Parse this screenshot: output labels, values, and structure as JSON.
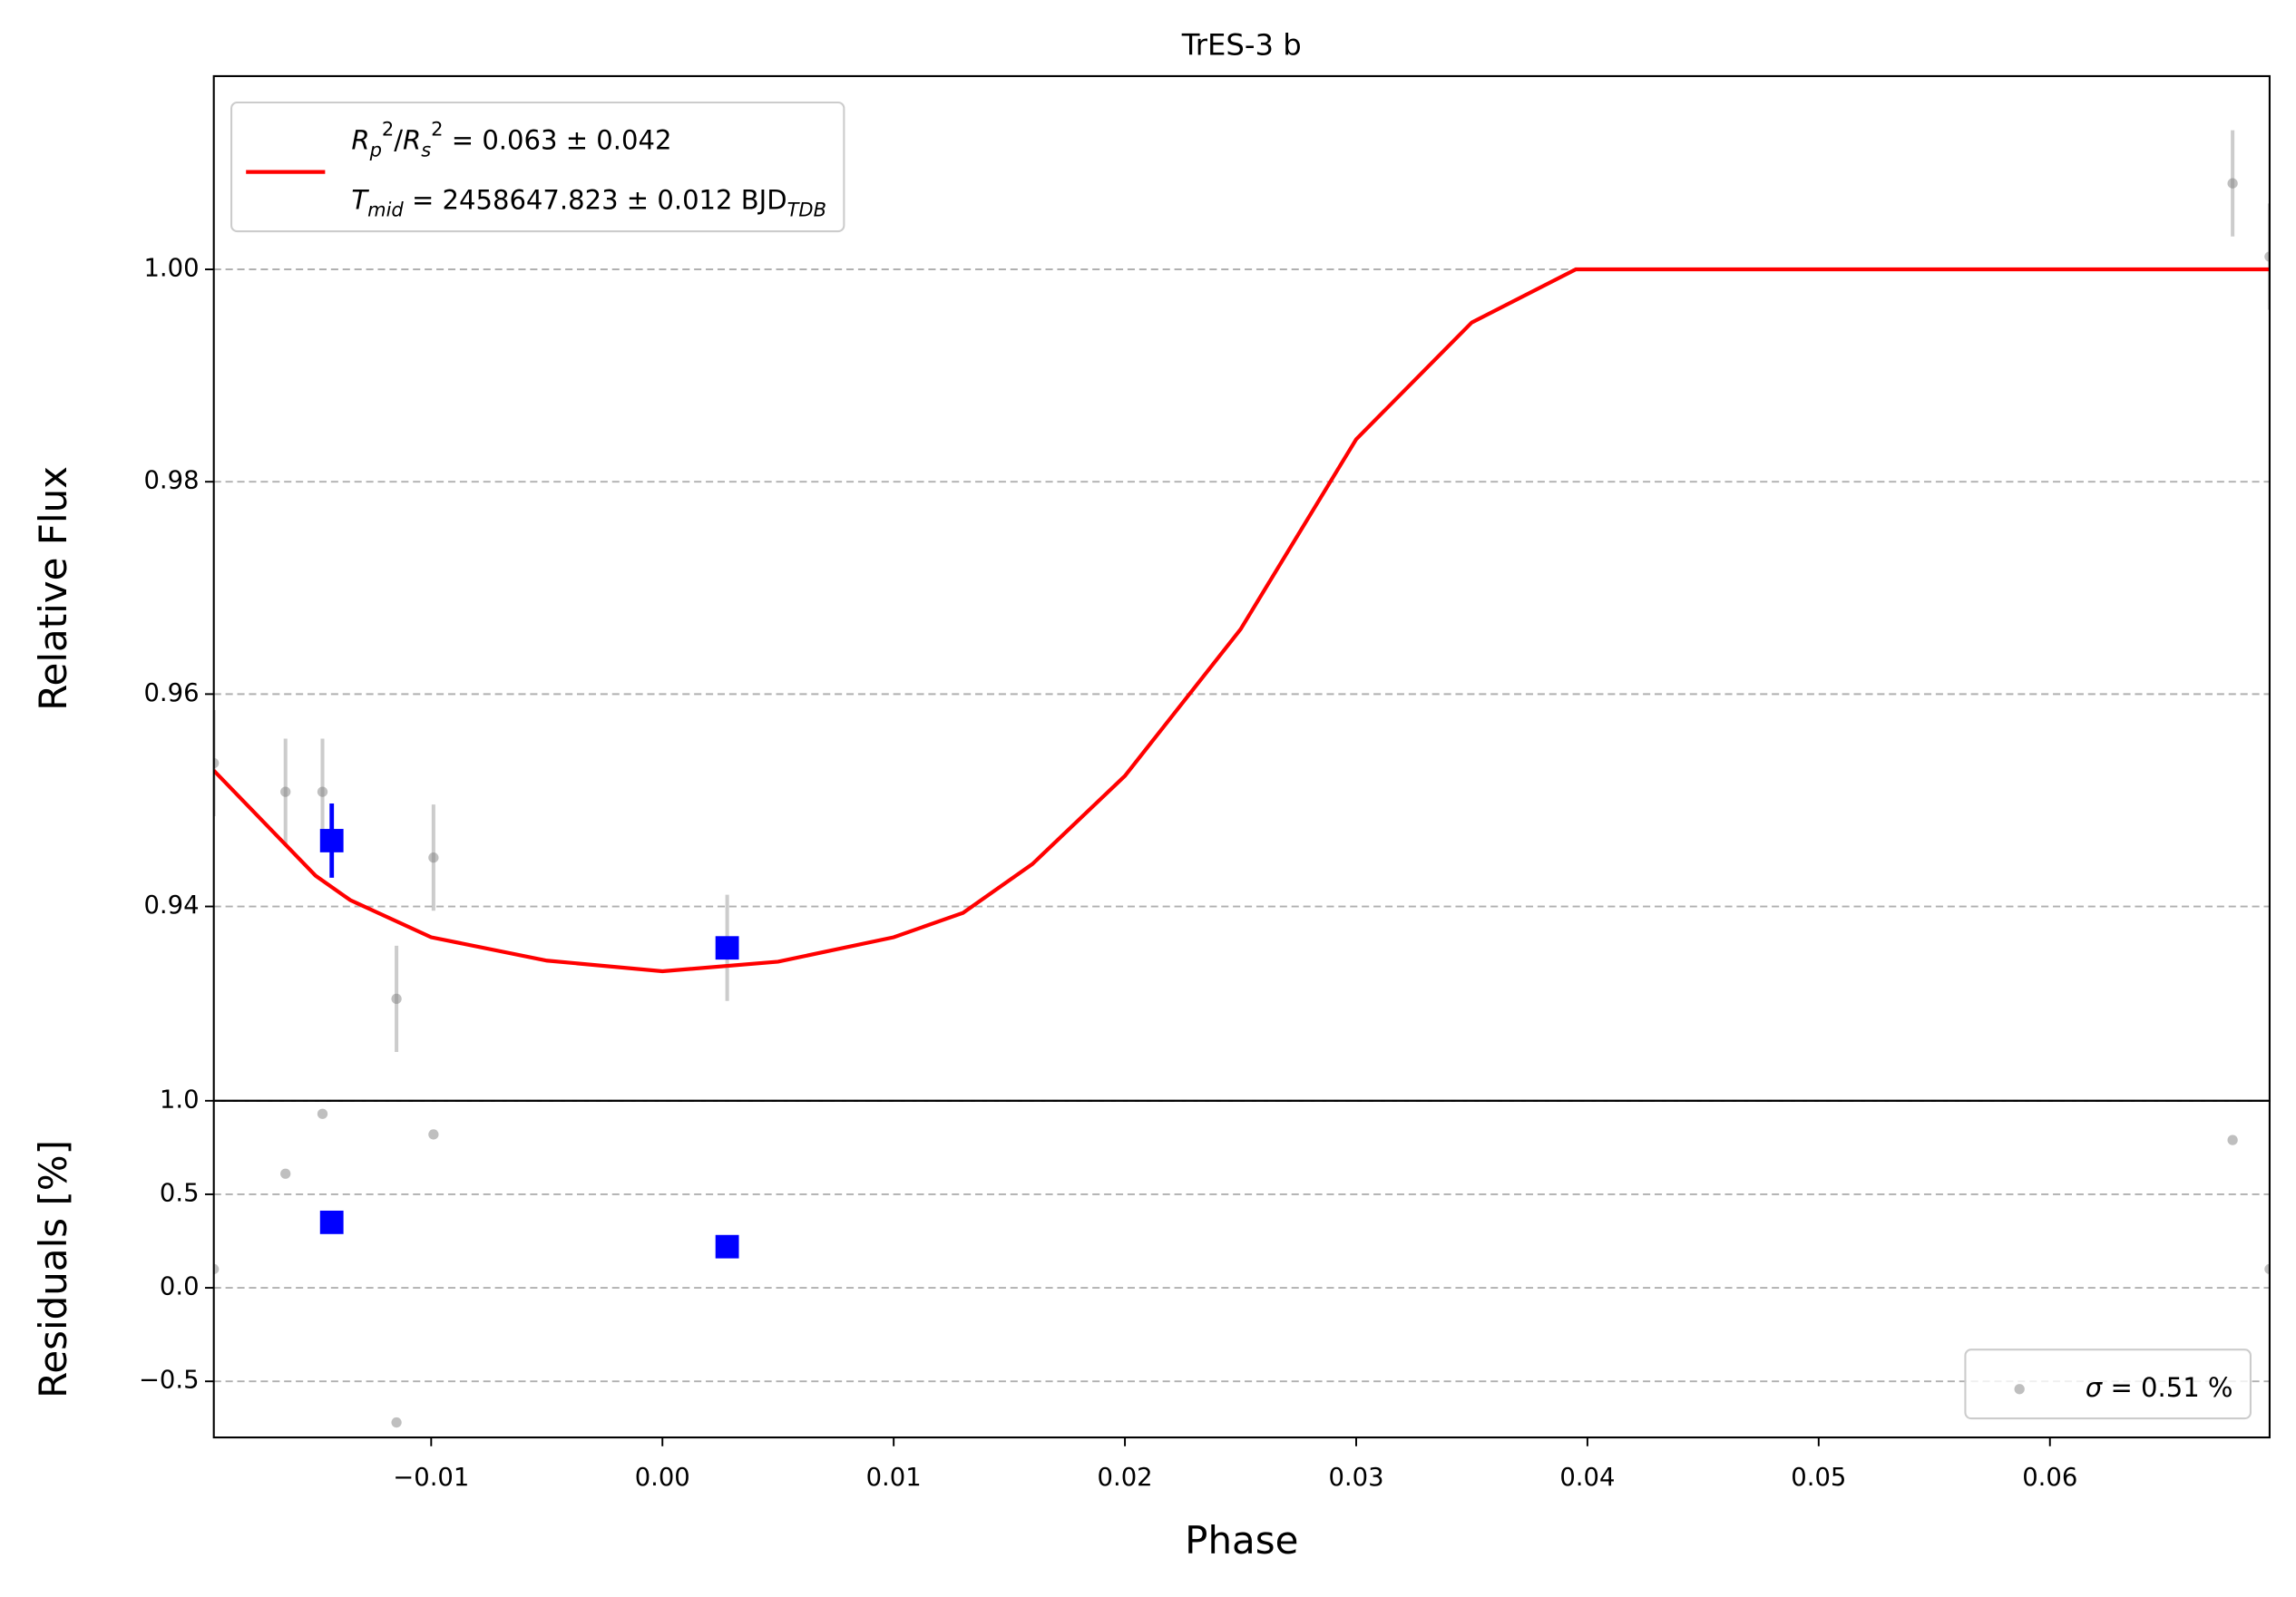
{
  "chart_data": [
    {
      "type": "errorbar",
      "title": "TrES-3 b",
      "ylabel": "Relative Flux",
      "xlim": [
        -0.0194,
        0.0695
      ],
      "ylim": [
        0.9217,
        1.0182
      ],
      "yticks": [
        0.94,
        0.96,
        0.98,
        {
          "value": 1,
          "label": "1.00"
        }
      ],
      "grid": true,
      "legend": "upper left",
      "series": [
        {
          "kind": "points",
          "color": "#808080",
          "x": [
            -0.0194,
            -0.0163,
            -0.0147,
            -0.0115,
            -0.0099,
            0.0028,
            0.0679,
            0.0695
          ],
          "values": [
            0.9535,
            0.9508,
            0.9508,
            0.9313,
            0.9446,
            0.9361,
            1.0081,
            1.0012
          ],
          "errors": [
            0.005,
            0.005,
            0.005,
            0.005,
            0.005,
            0.005,
            0.005,
            0.005
          ]
        },
        {
          "kind": "binned",
          "color": "#0000ff",
          "x": [
            -0.0143,
            0.0028
          ],
          "values": [
            0.9462,
            0.9361
          ],
          "errors": [
            0.0035,
            0.001
          ]
        },
        {
          "kind": "model",
          "color": "#ff0000",
          "x": [
            -0.0194,
            -0.017,
            -0.015,
            -0.0135,
            -0.01,
            -0.005,
            0,
            0.005,
            0.01,
            0.013,
            0.016,
            0.02,
            0.025,
            0.03,
            0.035,
            0.0395,
            0.0695
          ],
          "values": [
            0.9528,
            0.9474,
            0.9429,
            0.9406,
            0.9371,
            0.9349,
            0.9339,
            0.9348,
            0.9371,
            0.9394,
            0.944,
            0.9523,
            0.9661,
            0.984,
            0.995,
            1,
            1
          ],
          "label": [
            [
              {
                "t": "R",
                "i": true
              },
              {
                "t": "p",
                "i": true,
                "s": "sub"
              },
              {
                "t": "2",
                "s": "sup"
              },
              {
                "t": "/"
              },
              {
                "t": "R",
                "i": true
              },
              {
                "t": "s",
                "i": true,
                "s": "sub"
              },
              {
                "t": "2",
                "s": "sup"
              },
              {
                "t": " = 0.063 ± 0.042"
              }
            ],
            [
              {
                "t": "T",
                "i": true
              },
              {
                "t": "mid",
                "i": true,
                "s": "sub"
              },
              {
                "t": " = 2458647.823 ± 0.012 BJD"
              },
              {
                "t": "TDB",
                "i": true,
                "s": "sub"
              }
            ]
          ]
        }
      ]
    },
    {
      "type": "residuals",
      "ylabel": "Residuals [%]",
      "xlabel": "Phase",
      "xlim": [
        -0.0194,
        0.0695
      ],
      "ylim": [
        -0.8,
        1.0
      ],
      "xticks": [
        {
          "value": -0.01,
          "label": "−0.01"
        },
        {
          "value": 0,
          "label": "0.00"
        },
        {
          "value": 0.01,
          "label": "0.01"
        },
        {
          "value": 0.02,
          "label": "0.02"
        },
        {
          "value": 0.03,
          "label": "0.03"
        },
        {
          "value": 0.04,
          "label": "0.04"
        },
        {
          "value": 0.05,
          "label": "0.05"
        },
        {
          "value": 0.06,
          "label": "0.06"
        }
      ],
      "yticks": [
        {
          "value": -0.5,
          "label": "−0.5"
        },
        {
          "value": 0,
          "label": "0.0"
        },
        0.5,
        {
          "value": 1,
          "label": "1.0"
        }
      ],
      "grid": true,
      "legend": "lower right",
      "series": [
        {
          "kind": "points",
          "color": "#808080",
          "x": [
            -0.0194,
            -0.0163,
            -0.0147,
            -0.0115,
            -0.0099,
            0.0028,
            0.0679,
            0.0695
          ],
          "values": [
            0.1,
            0.61,
            0.93,
            -0.72,
            0.82,
            0.21,
            0.79,
            0.1
          ],
          "label": [
            [
              {
                "t": "σ",
                "i": true
              },
              {
                "t": " = 0.51 %"
              }
            ]
          ]
        },
        {
          "kind": "binned",
          "color": "#0000ff",
          "x": [
            -0.0143,
            0.0028
          ],
          "values": [
            0.35,
            0.22
          ]
        }
      ]
    }
  ]
}
